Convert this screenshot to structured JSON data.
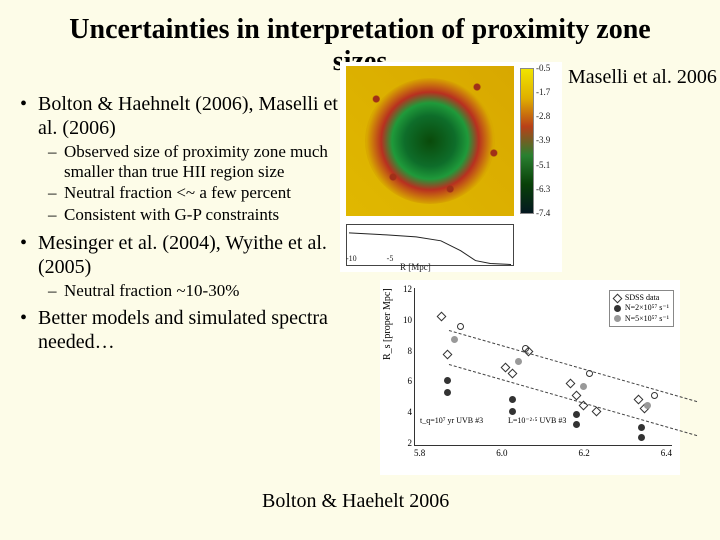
{
  "title": "Uncertainties in interpretation of proximity zone sizes",
  "bullets": {
    "b1": "Bolton & Haehnelt (2006), Maselli et al. (2006)",
    "b1subs": {
      "s1": "Observed size of proximity zone much smaller than true HII region size",
      "s2": "Neutral fraction <~ a few percent",
      "s3": "Consistent with G-P constraints"
    },
    "b2": "Mesinger et al. (2004), Wyithe et al. (2005)",
    "b2subs": {
      "s1": "Neutral fraction ~10-30%"
    },
    "b3": "Better models and simulated spectra needed…"
  },
  "fig_citation": "Maselli et al. 2006",
  "bottom_citation": "Bolton & Haehelt 2006",
  "heatmap": {
    "type": "heatmap+lineplot",
    "bg_color": "#e0b800",
    "core_colors": [
      "#0a4a0a",
      "#0e6d2a",
      "#1f9a3a",
      "#b83020",
      "#d8a800"
    ],
    "cbar_colors": [
      "#f0e400",
      "#e0b000",
      "#b84018",
      "#2a8030",
      "#084008",
      "#041820"
    ],
    "cbar_ticks": [
      "-0.5",
      "-1.7",
      "-2.8",
      "-3.9",
      "-5.1",
      "-6.3",
      "-7.4"
    ],
    "line_xlabel": "R [Mpc]",
    "line_xticks": [
      "-10",
      "-5"
    ],
    "line_ylim": [
      0,
      10
    ],
    "line_series": [
      -9,
      -8.5,
      -7.8,
      -6,
      -4,
      -2,
      -0.5,
      -0.2,
      -0.1,
      -0.05
    ]
  },
  "scatter": {
    "type": "scatter",
    "ylabel": "R_s [proper Mpc]",
    "yticks": [
      "12",
      "10",
      "8",
      "6",
      "4",
      "2"
    ],
    "xticks": [
      "5.8",
      "6.0",
      "6.2",
      "6.4"
    ],
    "ylim": [
      2,
      12
    ],
    "xlim": [
      5.7,
      6.5
    ],
    "background_color": "#ffffff",
    "dash_color": "#444444",
    "legend": {
      "r1": "SDSS data",
      "r2": "N=2×10⁵⁷ s⁻¹",
      "r3": "N=5×10⁵⁷ s⁻¹"
    },
    "annot1": "t_q=10⁷ yr  UVB #3",
    "annot2": "L=10⁻²·⁵  UVB #3",
    "points": [
      {
        "x": 5.78,
        "y": 10.2,
        "kind": "open-d"
      },
      {
        "x": 5.8,
        "y": 7.8,
        "kind": "open-d"
      },
      {
        "x": 5.98,
        "y": 7.0,
        "kind": "open-d"
      },
      {
        "x": 6.0,
        "y": 6.6,
        "kind": "open-d"
      },
      {
        "x": 6.05,
        "y": 8.0,
        "kind": "open-d"
      },
      {
        "x": 6.18,
        "y": 6.0,
        "kind": "open-d"
      },
      {
        "x": 6.2,
        "y": 5.2,
        "kind": "open-d"
      },
      {
        "x": 6.22,
        "y": 4.6,
        "kind": "open-d"
      },
      {
        "x": 6.26,
        "y": 4.2,
        "kind": "open-d"
      },
      {
        "x": 6.39,
        "y": 5.0,
        "kind": "open-d"
      },
      {
        "x": 6.41,
        "y": 4.4,
        "kind": "open-d"
      },
      {
        "x": 5.8,
        "y": 6.2,
        "kind": "fill-c"
      },
      {
        "x": 5.8,
        "y": 5.4,
        "kind": "fill-c"
      },
      {
        "x": 6.0,
        "y": 5.0,
        "kind": "fill-c"
      },
      {
        "x": 6.0,
        "y": 4.2,
        "kind": "fill-c"
      },
      {
        "x": 6.2,
        "y": 4.0,
        "kind": "fill-c"
      },
      {
        "x": 6.2,
        "y": 3.4,
        "kind": "fill-c"
      },
      {
        "x": 6.4,
        "y": 3.2,
        "kind": "fill-c"
      },
      {
        "x": 6.4,
        "y": 2.6,
        "kind": "fill-c"
      },
      {
        "x": 5.82,
        "y": 8.8,
        "kind": "grey-c"
      },
      {
        "x": 6.02,
        "y": 7.4,
        "kind": "grey-c"
      },
      {
        "x": 6.22,
        "y": 5.8,
        "kind": "grey-c"
      },
      {
        "x": 6.42,
        "y": 4.6,
        "kind": "grey-c"
      },
      {
        "x": 5.84,
        "y": 9.6,
        "kind": "open-c"
      },
      {
        "x": 6.04,
        "y": 8.2,
        "kind": "open-c"
      },
      {
        "x": 6.24,
        "y": 6.6,
        "kind": "open-c"
      },
      {
        "x": 6.44,
        "y": 5.2,
        "kind": "open-c"
      }
    ]
  }
}
